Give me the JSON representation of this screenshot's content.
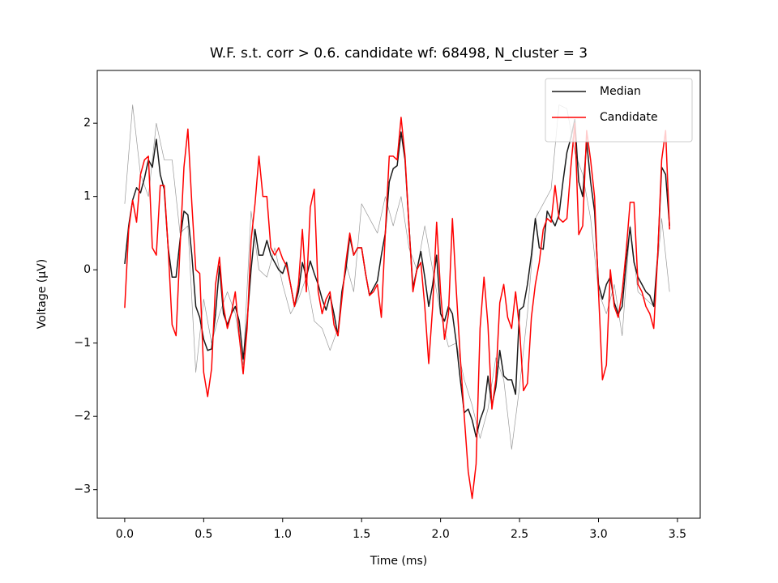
{
  "chart_data": {
    "type": "line",
    "title": "W.F. s.t. corr > 0.6. candidate wf: 68498, N_cluster = 3",
    "xlabel": "Time (ms)",
    "ylabel": "Voltage (μV)",
    "x": [
      0,
      0.025,
      0.05,
      0.075,
      0.1,
      0.125,
      0.15,
      0.175,
      0.2,
      0.225,
      0.25,
      0.275,
      0.3,
      0.325,
      0.35,
      0.375,
      0.4,
      0.425,
      0.45,
      0.475,
      0.5,
      0.525,
      0.55,
      0.575,
      0.6,
      0.625,
      0.65,
      0.675,
      0.7,
      0.725,
      0.75,
      0.775,
      0.8,
      0.825,
      0.85,
      0.875,
      0.9,
      0.925,
      0.95,
      0.975,
      1,
      1.025,
      1.05,
      1.075,
      1.1,
      1.125,
      1.15,
      1.175,
      1.2,
      1.225,
      1.25,
      1.275,
      1.3,
      1.325,
      1.35,
      1.375,
      1.4,
      1.425,
      1.45,
      1.475,
      1.5,
      1.525,
      1.55,
      1.575,
      1.6,
      1.625,
      1.65,
      1.675,
      1.7,
      1.725,
      1.75,
      1.775,
      1.8,
      1.825,
      1.85,
      1.875,
      1.9,
      1.925,
      1.95,
      1.975,
      2,
      2.025,
      2.05,
      2.075,
      2.1,
      2.125,
      2.15,
      2.175,
      2.2,
      2.225,
      2.25,
      2.275,
      2.3,
      2.325,
      2.35,
      2.375,
      2.4,
      2.425,
      2.45,
      2.475,
      2.5,
      2.525,
      2.55,
      2.575,
      2.6,
      2.625,
      2.65,
      2.675,
      2.7,
      2.725,
      2.75,
      2.775,
      2.8,
      2.825,
      2.85,
      2.875,
      2.9,
      2.925,
      2.95,
      2.975,
      3,
      3.025,
      3.05,
      3.075,
      3.1,
      3.125,
      3.15,
      3.175,
      3.2,
      3.225,
      3.25,
      3.275,
      3.3,
      3.325,
      3.35,
      3.375,
      3.4,
      3.425,
      3.45
    ],
    "series": [
      {
        "color": "#999999",
        "x": [
          0,
          0.05,
          0.1,
          0.15,
          0.2,
          0.25,
          0.3,
          0.35,
          0.4,
          0.45,
          0.5,
          0.55,
          0.6,
          0.65,
          0.7,
          0.75,
          0.8,
          0.85,
          0.9,
          0.95,
          1,
          1.05,
          1.1,
          1.15,
          1.2,
          1.25,
          1.3,
          1.35,
          1.4,
          1.45,
          1.5,
          1.55,
          1.6,
          1.65,
          1.7,
          1.75,
          1.8,
          1.85,
          1.9,
          1.95,
          2,
          2.05,
          2.1,
          2.15,
          2.2,
          2.25,
          2.3,
          2.35,
          2.4,
          2.45,
          2.5,
          2.55,
          2.6,
          2.65,
          2.7,
          2.75,
          2.8,
          2.85,
          2.9,
          2.95,
          3,
          3.05,
          3.1,
          3.15,
          3.2,
          3.25,
          3.3,
          3.35,
          3.4,
          3.45
        ],
        "values": [
          0.9,
          2.25,
          1.3,
          1.0,
          2.0,
          1.5,
          1.5,
          0.5,
          0.6,
          -1.4,
          -0.4,
          -1.0,
          -0.6,
          -0.3,
          -0.6,
          -1.3,
          0.8,
          0.0,
          -0.1,
          0.3,
          -0.2,
          -0.6,
          -0.4,
          -0.1,
          -0.7,
          -0.8,
          -1.1,
          -0.8,
          0.1,
          -0.3,
          0.9,
          0.7,
          0.5,
          1.0,
          0.6,
          1.0,
          0.3,
          0.0,
          0.6,
          0.0,
          -0.6,
          -1.05,
          -1.0,
          -1.5,
          -1.85,
          -2.3,
          -1.9,
          -1.2,
          -1.5,
          -2.45,
          -1.6,
          -0.6,
          0.7,
          0.9,
          1.1,
          2.25,
          2.2,
          1.6,
          1.3,
          0.7,
          -0.3,
          -0.6,
          -0.2,
          -0.9,
          0.6,
          -0.3,
          -0.4,
          -0.5,
          0.7,
          -0.3
        ]
      },
      {
        "name": "Median",
        "color": "#1a1a1a",
        "values": [
          0.08,
          0.6,
          0.95,
          1.12,
          1.05,
          1.25,
          1.5,
          1.4,
          1.78,
          1.3,
          1.1,
          0.3,
          -0.1,
          -0.1,
          0.4,
          0.8,
          0.75,
          0.2,
          -0.5,
          -0.65,
          -0.95,
          -1.1,
          -1.08,
          -0.6,
          0.05,
          -0.6,
          -0.75,
          -0.6,
          -0.5,
          -0.7,
          -1.22,
          -0.7,
          0.0,
          0.55,
          0.2,
          0.2,
          0.4,
          0.2,
          0.1,
          0.0,
          -0.05,
          0.1,
          -0.2,
          -0.5,
          -0.3,
          0.1,
          -0.1,
          0.12,
          -0.05,
          -0.2,
          -0.4,
          -0.55,
          -0.35,
          -0.6,
          -0.9,
          -0.3,
          0.0,
          0.45,
          0.2,
          0.3,
          0.3,
          -0.05,
          -0.35,
          -0.25,
          -0.15,
          0.2,
          0.5,
          1.2,
          1.38,
          1.42,
          1.88,
          1.5,
          0.6,
          -0.25,
          0.0,
          0.25,
          -0.1,
          -0.5,
          -0.2,
          0.2,
          -0.6,
          -0.7,
          -0.5,
          -0.6,
          -1.0,
          -1.5,
          -1.95,
          -1.9,
          -2.05,
          -2.28,
          -2.05,
          -1.9,
          -1.45,
          -1.85,
          -1.6,
          -1.1,
          -1.45,
          -1.5,
          -1.5,
          -1.7,
          -0.55,
          -0.5,
          -0.2,
          0.2,
          0.7,
          0.3,
          0.28,
          0.8,
          0.7,
          0.6,
          0.75,
          1.2,
          1.6,
          1.8,
          2.05,
          1.2,
          1.0,
          1.75,
          1.2,
          0.8,
          -0.2,
          -0.4,
          -0.2,
          -0.1,
          -0.45,
          -0.6,
          -0.5,
          0.1,
          0.58,
          0.1,
          -0.1,
          -0.2,
          -0.3,
          -0.35,
          -0.5,
          0.2,
          1.4,
          1.3,
          0.6
        ]
      },
      {
        "name": "Candidate",
        "color": "#ff0000",
        "values": [
          -0.52,
          0.55,
          0.95,
          0.65,
          1.3,
          1.5,
          1.55,
          0.3,
          0.2,
          1.15,
          1.15,
          0.3,
          -0.75,
          -0.9,
          0.3,
          1.4,
          1.92,
          0.9,
          0.0,
          -0.05,
          -1.4,
          -1.73,
          -1.35,
          -0.2,
          0.17,
          -0.5,
          -0.8,
          -0.6,
          -0.3,
          -0.9,
          -1.42,
          -0.8,
          0.4,
          0.9,
          1.55,
          1.0,
          1.0,
          0.3,
          0.2,
          0.3,
          0.15,
          0.05,
          -0.2,
          -0.5,
          -0.2,
          0.55,
          -0.3,
          0.85,
          1.1,
          -0.3,
          -0.6,
          -0.4,
          -0.3,
          -0.75,
          -0.9,
          -0.4,
          0.1,
          0.5,
          0.2,
          0.3,
          0.3,
          -0.05,
          -0.35,
          -0.3,
          -0.2,
          -0.65,
          0.5,
          1.55,
          1.55,
          1.5,
          2.08,
          1.55,
          0.6,
          -0.3,
          0.0,
          0.1,
          -0.5,
          -1.28,
          -0.5,
          0.65,
          -0.3,
          -0.95,
          -0.6,
          0.7,
          -0.3,
          -1.2,
          -2.0,
          -2.75,
          -3.12,
          -2.65,
          -0.8,
          -0.1,
          -0.75,
          -1.9,
          -1.5,
          -0.45,
          -0.2,
          -0.65,
          -0.8,
          -0.3,
          -0.8,
          -1.65,
          -1.55,
          -0.65,
          -0.2,
          0.1,
          0.55,
          0.7,
          0.65,
          1.15,
          0.7,
          0.65,
          0.7,
          1.4,
          2.0,
          0.48,
          0.6,
          1.9,
          1.5,
          1.0,
          -0.3,
          -1.5,
          -1.3,
          0.0,
          -0.5,
          -0.65,
          -0.3,
          0.25,
          0.92,
          0.92,
          -0.2,
          -0.3,
          -0.5,
          -0.6,
          -0.8,
          0.2,
          1.5,
          1.9,
          0.55
        ]
      }
    ],
    "xlim": [
      -0.174,
      3.644
    ],
    "ylim": [
      -3.39,
      2.72
    ],
    "xticks": [
      {
        "value": 0,
        "label": "0.0"
      },
      {
        "value": 0.5,
        "label": "0.5"
      },
      {
        "value": 1,
        "label": "1.0"
      },
      {
        "value": 1.5,
        "label": "1.5"
      },
      {
        "value": 2,
        "label": "2.0"
      },
      {
        "value": 2.5,
        "label": "2.5"
      },
      {
        "value": 3,
        "label": "3.0"
      },
      {
        "value": 3.5,
        "label": "3.5"
      }
    ],
    "yticks": [
      {
        "value": -3,
        "label": "−3"
      },
      {
        "value": -2,
        "label": "−2"
      },
      {
        "value": -1,
        "label": "−1"
      },
      0,
      1,
      2
    ],
    "grid": false,
    "legend": "upper right"
  }
}
